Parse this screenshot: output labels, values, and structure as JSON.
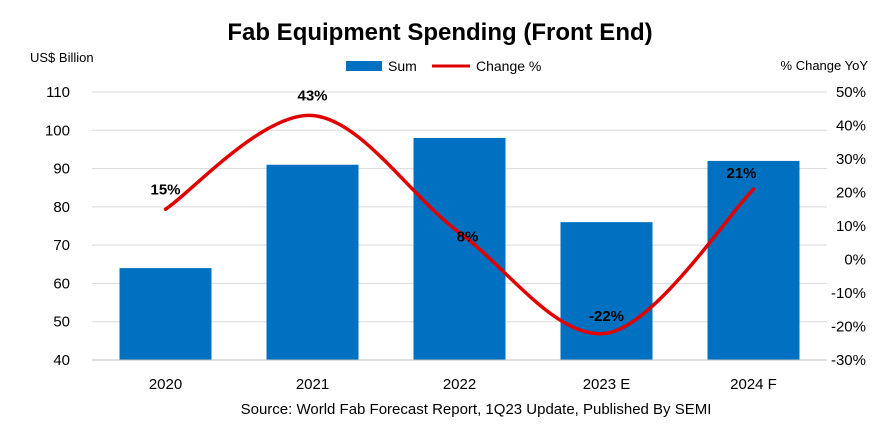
{
  "chart_data": {
    "type": "bar",
    "title": "Fab Equipment Spending (Front End)",
    "categories": [
      "2020",
      "2021",
      "2022",
      "2023 E",
      "2024 F"
    ],
    "series": [
      {
        "name": "Sum",
        "type": "bar",
        "axis": "left",
        "color": "#0070C0",
        "values": [
          64,
          91,
          98,
          76,
          92
        ]
      },
      {
        "name": "Change %",
        "type": "line",
        "axis": "right",
        "color": "#E00000",
        "values": [
          15,
          43,
          8,
          -22,
          21
        ]
      }
    ],
    "data_labels": [
      "15%",
      "43%",
      "8%",
      "-22%",
      "21%"
    ],
    "ylabel_left": "US$ Billion",
    "ylabel_right": "% Change YoY",
    "ylim_left": [
      40,
      110
    ],
    "yticks_left": [
      40,
      50,
      60,
      70,
      80,
      90,
      100,
      110
    ],
    "ytick_labels_left": [
      "40",
      "50",
      "60",
      "70",
      "80",
      "90",
      "100",
      "110"
    ],
    "ylim_right": [
      -30,
      50
    ],
    "yticks_right": [
      -30,
      -20,
      -10,
      0,
      10,
      20,
      30,
      40,
      50
    ],
    "ytick_labels_right": [
      "-30%",
      "-20%",
      "-10%",
      "0%",
      "10%",
      "20%",
      "30%",
      "40%",
      "50%"
    ],
    "legend_position": "top-center",
    "grid": true,
    "source": "Source: World Fab Forecast Report, 1Q23 Update, Published By SEMI"
  }
}
